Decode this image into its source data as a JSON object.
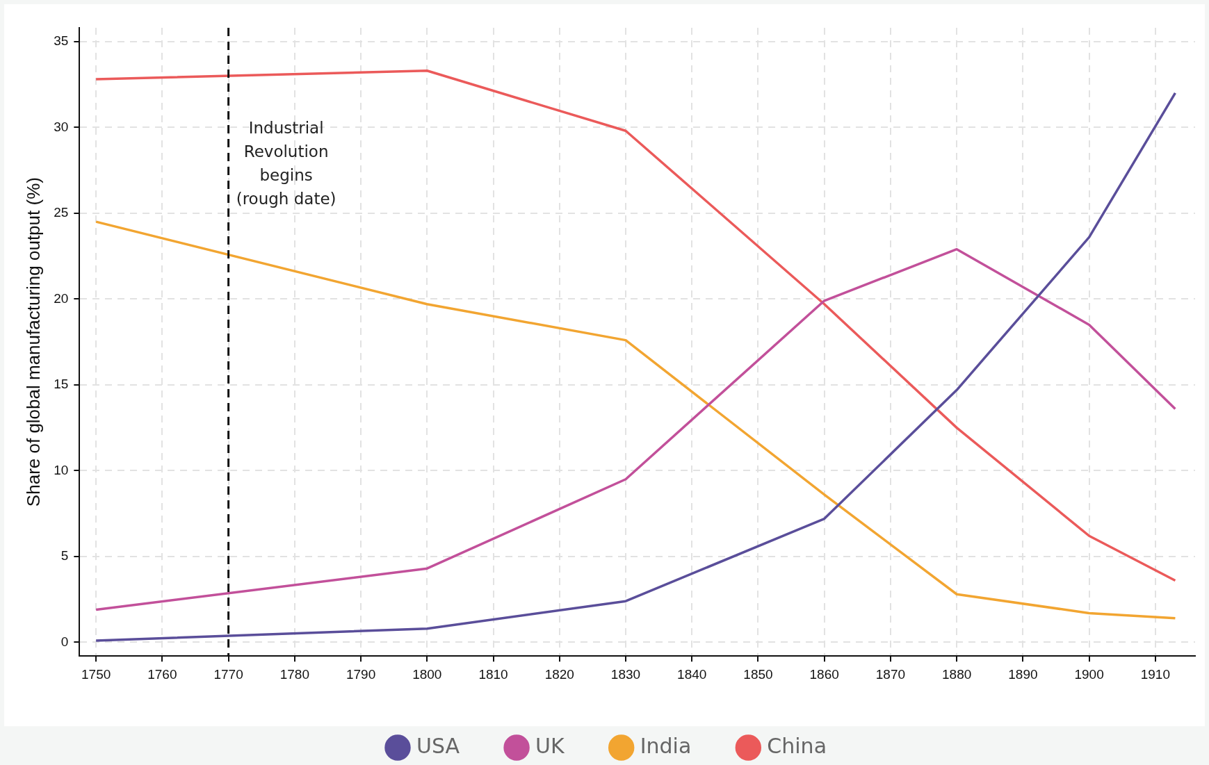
{
  "chart_data": {
    "type": "line",
    "ylabel": "Share of global manufacturing output (%)",
    "x": [
      1750,
      1800,
      1830,
      1860,
      1880,
      1900,
      1913
    ],
    "series": [
      {
        "name": "USA",
        "color": "#5a4e9a",
        "values": [
          0.1,
          0.8,
          2.4,
          7.2,
          14.7,
          23.6,
          32.0
        ]
      },
      {
        "name": "UK",
        "color": "#c2509a",
        "values": [
          1.9,
          4.3,
          9.5,
          19.9,
          22.9,
          18.5,
          13.6
        ]
      },
      {
        "name": "India",
        "color": "#f2a531",
        "values": [
          24.5,
          19.7,
          17.6,
          8.6,
          2.8,
          1.7,
          1.4
        ]
      },
      {
        "name": "China",
        "color": "#eb5a5a",
        "values": [
          32.8,
          33.3,
          29.8,
          19.7,
          12.5,
          6.2,
          3.6
        ]
      }
    ],
    "xlim": [
      1747.5,
      1916
    ],
    "xticks": [
      1750,
      1760,
      1770,
      1780,
      1790,
      1800,
      1810,
      1820,
      1830,
      1840,
      1850,
      1860,
      1870,
      1880,
      1890,
      1900,
      1910
    ],
    "ylim": [
      -0.8,
      35.8
    ],
    "yticks": [
      0,
      5,
      10,
      15,
      20,
      25,
      30,
      35
    ],
    "ref_lines": [
      {
        "axis": "x",
        "value": 1770,
        "label": "Industrial Revolution begins (rough date)",
        "color": "#111111",
        "line_style": "dashed"
      }
    ],
    "grid": true,
    "legend": "bottom",
    "marker": "none",
    "line_style": "solid"
  }
}
